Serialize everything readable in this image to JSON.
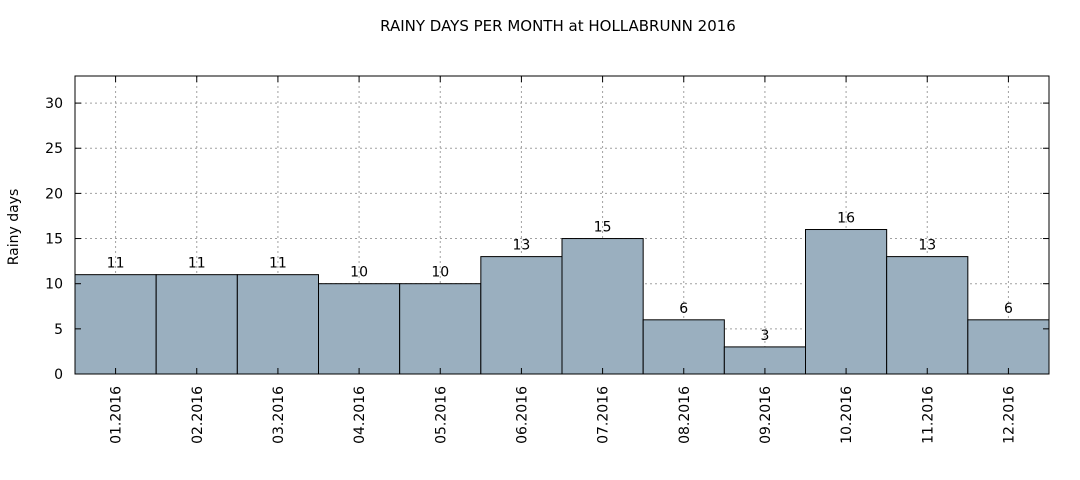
{
  "chart_data": {
    "type": "bar",
    "title": "RAINY DAYS PER MONTH at HOLLABRUNN 2016",
    "xlabel": "",
    "ylabel": "Rainy days",
    "categories": [
      "01.2016",
      "02.2016",
      "03.2016",
      "04.2016",
      "05.2016",
      "06.2016",
      "07.2016",
      "08.2016",
      "09.2016",
      "10.2016",
      "11.2016",
      "12.2016"
    ],
    "values": [
      11,
      11,
      11,
      10,
      10,
      13,
      15,
      6,
      3,
      16,
      13,
      6
    ],
    "ylim": [
      0,
      33
    ],
    "yticks": [
      0,
      5,
      10,
      15,
      20,
      25,
      30
    ],
    "grid": true,
    "bar_color": "#9aafbf",
    "grid_color": "#a0a0a0"
  }
}
